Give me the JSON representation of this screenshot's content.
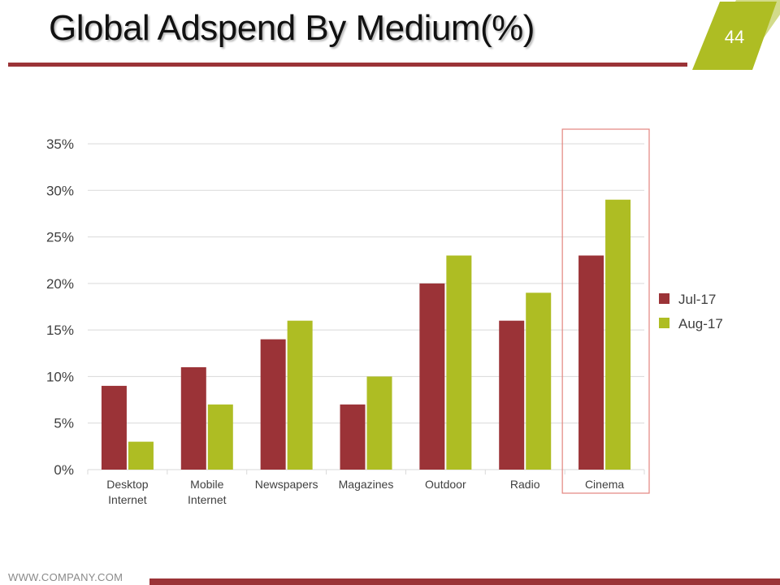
{
  "header": {
    "title": "Global Adspend By Medium(%)",
    "page_number": "44"
  },
  "footer": {
    "url": "WWW.COMPANY.COM"
  },
  "colors": {
    "primary": "#9b3337",
    "accent": "#aebd23",
    "highlight_box": "#e3847e",
    "grid": "#d9d9d9"
  },
  "chart_data": {
    "type": "bar",
    "title": "",
    "xlabel": "",
    "ylabel": "",
    "categories": [
      [
        "Desktop",
        "Internet"
      ],
      [
        "Mobile",
        "Internet"
      ],
      [
        "Newspapers"
      ],
      [
        "Magazines"
      ],
      [
        "Outdoor"
      ],
      [
        "Radio"
      ],
      [
        "Cinema"
      ]
    ],
    "series": [
      {
        "name": "Jul-17",
        "color": "#9b3337",
        "values": [
          9,
          11,
          14,
          7,
          20,
          16,
          23
        ]
      },
      {
        "name": "Aug-17",
        "color": "#aebd23",
        "values": [
          3,
          7,
          16,
          10,
          23,
          19,
          29
        ]
      }
    ],
    "ylim": [
      0,
      35
    ],
    "yticks": [
      0,
      5,
      10,
      15,
      20,
      25,
      30,
      35
    ],
    "ytick_labels": [
      "0%",
      "5%",
      "10%",
      "15%",
      "20%",
      "25%",
      "30%",
      "35%"
    ],
    "grid": true,
    "legend_position": "right",
    "highlighted_category": "Cinema"
  }
}
